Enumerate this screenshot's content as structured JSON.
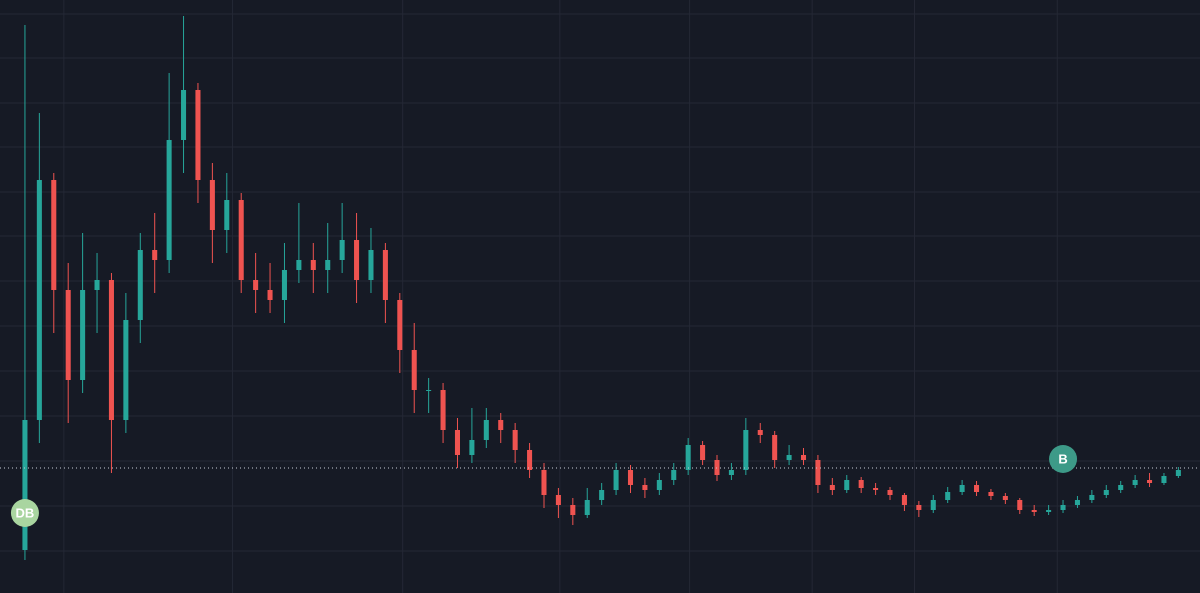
{
  "chart_data": {
    "type": "candlestick",
    "x": [
      1,
      2,
      3,
      4,
      5,
      6,
      7,
      8,
      9,
      10,
      11,
      12,
      13,
      14,
      15,
      16,
      17,
      18,
      19,
      20,
      21,
      22,
      23,
      24,
      25,
      26,
      27,
      28,
      29,
      30,
      31,
      32,
      33,
      34,
      35,
      36,
      37,
      38,
      39,
      40,
      41,
      42,
      43,
      44,
      45,
      46,
      47,
      48,
      49,
      50,
      51,
      52,
      53,
      54,
      55,
      56,
      57,
      58,
      59,
      60,
      61,
      62,
      63,
      64,
      65,
      66,
      67,
      68,
      69,
      70,
      71,
      72,
      73,
      74,
      75,
      76,
      77,
      78,
      79,
      80,
      81
    ],
    "open": [
      43,
      173,
      413,
      303,
      213,
      303,
      313,
      173,
      273,
      343,
      333,
      453,
      503,
      413,
      363,
      393,
      313,
      303,
      293,
      323,
      333,
      323,
      333,
      353,
      313,
      343,
      293,
      243,
      203,
      203,
      163,
      138,
      153,
      173,
      163,
      143,
      123,
      98,
      88,
      78,
      93,
      103,
      123,
      108,
      103,
      113,
      123,
      148,
      133,
      118,
      123,
      163,
      158,
      133,
      138,
      133,
      108,
      103,
      113,
      105,
      103,
      98,
      88,
      83,
      93,
      101,
      108,
      101,
      97,
      93,
      83,
      81,
      83,
      88,
      93,
      98,
      103,
      108,
      113,
      110,
      117
    ],
    "high": [
      568,
      480,
      420,
      330,
      360,
      340,
      320,
      300,
      360,
      380,
      520,
      577,
      510,
      430,
      420,
      400,
      340,
      330,
      350,
      390,
      350,
      370,
      390,
      380,
      365,
      350,
      300,
      270,
      215,
      210,
      175,
      185,
      185,
      180,
      170,
      150,
      130,
      105,
      95,
      105,
      110,
      130,
      128,
      115,
      120,
      130,
      155,
      152,
      138,
      130,
      175,
      170,
      162,
      148,
      145,
      138,
      115,
      118,
      116,
      110,
      106,
      100,
      92,
      98,
      106,
      113,
      112,
      104,
      100,
      95,
      88,
      88,
      93,
      97,
      103,
      108,
      112,
      118,
      120,
      120,
      126
    ],
    "low": [
      33,
      150,
      260,
      170,
      200,
      260,
      120,
      160,
      250,
      300,
      320,
      420,
      390,
      330,
      340,
      300,
      280,
      280,
      270,
      310,
      300,
      300,
      320,
      290,
      300,
      270,
      220,
      180,
      180,
      150,
      125,
      130,
      145,
      150,
      130,
      115,
      85,
      75,
      68,
      75,
      88,
      98,
      100,
      95,
      98,
      108,
      118,
      128,
      112,
      113,
      118,
      150,
      125,
      128,
      128,
      100,
      98,
      100,
      100,
      98,
      93,
      82,
      76,
      80,
      90,
      98,
      97,
      93,
      89,
      79,
      77,
      78,
      80,
      85,
      90,
      95,
      100,
      105,
      106,
      108,
      115
    ],
    "close": [
      173,
      413,
      303,
      213,
      303,
      313,
      173,
      273,
      343,
      333,
      453,
      503,
      413,
      363,
      393,
      313,
      303,
      293,
      323,
      333,
      323,
      333,
      353,
      313,
      343,
      293,
      243,
      203,
      203,
      163,
      138,
      153,
      173,
      163,
      143,
      123,
      98,
      88,
      78,
      93,
      103,
      123,
      108,
      103,
      113,
      123,
      148,
      133,
      118,
      123,
      163,
      158,
      133,
      138,
      133,
      108,
      103,
      113,
      105,
      103,
      98,
      88,
      83,
      93,
      101,
      108,
      101,
      97,
      93,
      83,
      81,
      83,
      88,
      93,
      98,
      103,
      108,
      113,
      110,
      117,
      123
    ],
    "up_color": "#26a69a",
    "down_color": "#ef5350",
    "xlim": [
      -0.73,
      82.5
    ],
    "xticks": [
      3.7,
      15.4,
      27.2,
      38.1,
      47.1,
      55.6,
      62.7,
      72.6
    ],
    "ylim": [
      0,
      593
    ],
    "yticks": [
      42,
      87,
      132,
      177,
      222,
      267,
      312,
      357,
      401,
      446,
      490,
      535,
      579
    ],
    "grid": true,
    "price_line": 125,
    "markers": [
      {
        "label": "DB",
        "x": 1,
        "y": 80,
        "color": "#a9d5a0"
      },
      {
        "label": "B",
        "x": 73,
        "y": 134,
        "color": "#3d9a88"
      }
    ]
  }
}
